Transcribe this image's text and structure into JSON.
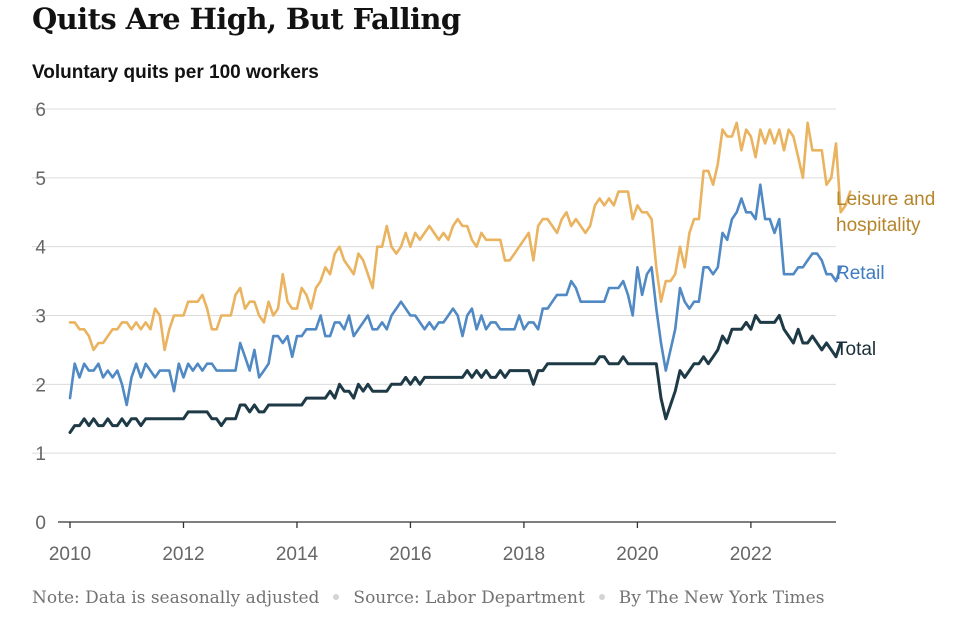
{
  "title": "Quits Are High, But Falling",
  "subtitle": "Voluntary quits per 100 workers",
  "footer": {
    "note": "Note: Data is seasonally adjusted",
    "source": "Source: Labor Department",
    "byline": "By The New York Times"
  },
  "chart_data": {
    "type": "line",
    "title": "Quits Are High, But Falling",
    "subtitle": "Voluntary quits per 100 workers",
    "xlabel": "",
    "ylabel": "",
    "x_start": "2010-01",
    "x_step": "month",
    "x_range": [
      2010,
      2023.5
    ],
    "ylim": [
      0,
      6
    ],
    "grid": "horizontal",
    "legend": "direct labels at right end of lines",
    "x_ticks": [
      "2010",
      "2012",
      "2014",
      "2016",
      "2018",
      "2020",
      "2022"
    ],
    "y_ticks": [
      "0",
      "1",
      "2",
      "3",
      "4",
      "5",
      "6"
    ],
    "series": [
      {
        "name": "Leisure and hospitality",
        "label_lines": [
          "Leisure and",
          "hospitality"
        ],
        "color": "#e9b35f",
        "label_color": "#b5852a",
        "values": [
          2.9,
          2.9,
          2.8,
          2.8,
          2.7,
          2.5,
          2.6,
          2.6,
          2.7,
          2.8,
          2.8,
          2.9,
          2.9,
          2.8,
          2.9,
          2.8,
          2.9,
          2.8,
          3.1,
          3.0,
          2.5,
          2.8,
          3.0,
          3.0,
          3.0,
          3.2,
          3.2,
          3.2,
          3.3,
          3.1,
          2.8,
          2.8,
          3.0,
          3.0,
          3.0,
          3.3,
          3.4,
          3.1,
          3.2,
          3.2,
          3.0,
          2.9,
          3.2,
          3.0,
          3.1,
          3.6,
          3.2,
          3.1,
          3.1,
          3.4,
          3.3,
          3.1,
          3.4,
          3.5,
          3.7,
          3.6,
          3.9,
          4.0,
          3.8,
          3.7,
          3.6,
          3.9,
          3.8,
          3.6,
          3.4,
          4.0,
          4.0,
          4.3,
          4.0,
          3.9,
          4.0,
          4.2,
          4.0,
          4.2,
          4.1,
          4.2,
          4.3,
          4.2,
          4.1,
          4.2,
          4.1,
          4.3,
          4.4,
          4.3,
          4.3,
          4.1,
          4.0,
          4.2,
          4.1,
          4.1,
          4.1,
          4.1,
          3.8,
          3.8,
          3.9,
          4.0,
          4.1,
          4.2,
          3.8,
          4.3,
          4.4,
          4.4,
          4.3,
          4.2,
          4.4,
          4.5,
          4.3,
          4.4,
          4.3,
          4.2,
          4.3,
          4.6,
          4.7,
          4.6,
          4.7,
          4.6,
          4.8,
          4.8,
          4.8,
          4.4,
          4.6,
          4.5,
          4.5,
          4.4,
          3.7,
          3.2,
          3.5,
          3.5,
          3.6,
          4.0,
          3.7,
          4.2,
          4.4,
          4.4,
          5.1,
          5.1,
          4.9,
          5.2,
          5.7,
          5.6,
          5.6,
          5.8,
          5.4,
          5.7,
          5.6,
          5.3,
          5.7,
          5.5,
          5.7,
          5.5,
          5.7,
          5.4,
          5.7,
          5.6,
          5.3,
          5.0,
          5.8,
          5.4,
          5.4,
          5.4,
          4.9,
          5.0,
          5.5,
          4.5,
          4.6,
          4.8
        ]
      },
      {
        "name": "Retail",
        "label_lines": [
          "Retail"
        ],
        "color": "#5089c3",
        "label_color": "#3f7bbf",
        "values": [
          1.8,
          2.3,
          2.1,
          2.3,
          2.2,
          2.2,
          2.3,
          2.1,
          2.2,
          2.1,
          2.2,
          2.0,
          1.7,
          2.1,
          2.3,
          2.1,
          2.3,
          2.2,
          2.1,
          2.2,
          2.2,
          2.2,
          1.9,
          2.3,
          2.1,
          2.3,
          2.2,
          2.3,
          2.2,
          2.3,
          2.3,
          2.2,
          2.2,
          2.2,
          2.2,
          2.2,
          2.6,
          2.4,
          2.2,
          2.5,
          2.1,
          2.2,
          2.3,
          2.7,
          2.7,
          2.6,
          2.7,
          2.4,
          2.7,
          2.7,
          2.8,
          2.8,
          2.8,
          3.0,
          2.7,
          2.7,
          2.9,
          2.9,
          2.8,
          3.0,
          2.7,
          2.8,
          2.9,
          3.0,
          2.8,
          2.8,
          2.9,
          2.8,
          3.0,
          3.1,
          3.2,
          3.1,
          3.0,
          3.0,
          2.9,
          2.8,
          2.9,
          2.8,
          2.9,
          2.9,
          3.0,
          3.1,
          3.0,
          2.7,
          3.0,
          3.1,
          2.8,
          3.0,
          2.8,
          2.9,
          2.9,
          2.8,
          2.8,
          2.8,
          2.8,
          3.0,
          2.8,
          2.9,
          2.9,
          2.8,
          3.1,
          3.1,
          3.2,
          3.3,
          3.3,
          3.3,
          3.5,
          3.4,
          3.2,
          3.2,
          3.2,
          3.2,
          3.2,
          3.2,
          3.4,
          3.4,
          3.4,
          3.5,
          3.3,
          3.0,
          3.7,
          3.3,
          3.6,
          3.7,
          3.1,
          2.6,
          2.2,
          2.5,
          2.8,
          3.4,
          3.2,
          3.1,
          3.2,
          3.2,
          3.7,
          3.7,
          3.6,
          3.7,
          4.2,
          4.1,
          4.4,
          4.5,
          4.7,
          4.5,
          4.5,
          4.4,
          4.9,
          4.4,
          4.4,
          4.2,
          4.4,
          3.6,
          3.6,
          3.6,
          3.7,
          3.7,
          3.8,
          3.9,
          3.9,
          3.8,
          3.6,
          3.6,
          3.5,
          3.7
        ]
      },
      {
        "name": "Total",
        "label_lines": [
          "Total"
        ],
        "color": "#1f3a47",
        "label_color": "#1a2e38",
        "values": [
          1.3,
          1.4,
          1.4,
          1.5,
          1.4,
          1.5,
          1.4,
          1.4,
          1.5,
          1.4,
          1.4,
          1.5,
          1.4,
          1.5,
          1.5,
          1.4,
          1.5,
          1.5,
          1.5,
          1.5,
          1.5,
          1.5,
          1.5,
          1.5,
          1.5,
          1.6,
          1.6,
          1.6,
          1.6,
          1.6,
          1.5,
          1.5,
          1.4,
          1.5,
          1.5,
          1.5,
          1.7,
          1.7,
          1.6,
          1.7,
          1.6,
          1.6,
          1.7,
          1.7,
          1.7,
          1.7,
          1.7,
          1.7,
          1.7,
          1.7,
          1.8,
          1.8,
          1.8,
          1.8,
          1.8,
          1.9,
          1.8,
          2.0,
          1.9,
          1.9,
          1.8,
          2.0,
          1.9,
          2.0,
          1.9,
          1.9,
          1.9,
          1.9,
          2.0,
          2.0,
          2.0,
          2.1,
          2.0,
          2.1,
          2.0,
          2.1,
          2.1,
          2.1,
          2.1,
          2.1,
          2.1,
          2.1,
          2.1,
          2.1,
          2.2,
          2.1,
          2.2,
          2.1,
          2.2,
          2.1,
          2.1,
          2.2,
          2.1,
          2.2,
          2.2,
          2.2,
          2.2,
          2.2,
          2.0,
          2.2,
          2.2,
          2.3,
          2.3,
          2.3,
          2.3,
          2.3,
          2.3,
          2.3,
          2.3,
          2.3,
          2.3,
          2.3,
          2.4,
          2.4,
          2.3,
          2.3,
          2.3,
          2.4,
          2.3,
          2.3,
          2.3,
          2.3,
          2.3,
          2.3,
          2.3,
          1.8,
          1.5,
          1.7,
          1.9,
          2.2,
          2.1,
          2.2,
          2.3,
          2.3,
          2.4,
          2.3,
          2.4,
          2.5,
          2.7,
          2.6,
          2.8,
          2.8,
          2.8,
          2.9,
          2.8,
          3.0,
          2.9,
          2.9,
          2.9,
          2.9,
          3.0,
          2.8,
          2.7,
          2.6,
          2.8,
          2.6,
          2.6,
          2.7,
          2.6,
          2.5,
          2.6,
          2.5,
          2.4,
          2.6
        ]
      }
    ]
  }
}
